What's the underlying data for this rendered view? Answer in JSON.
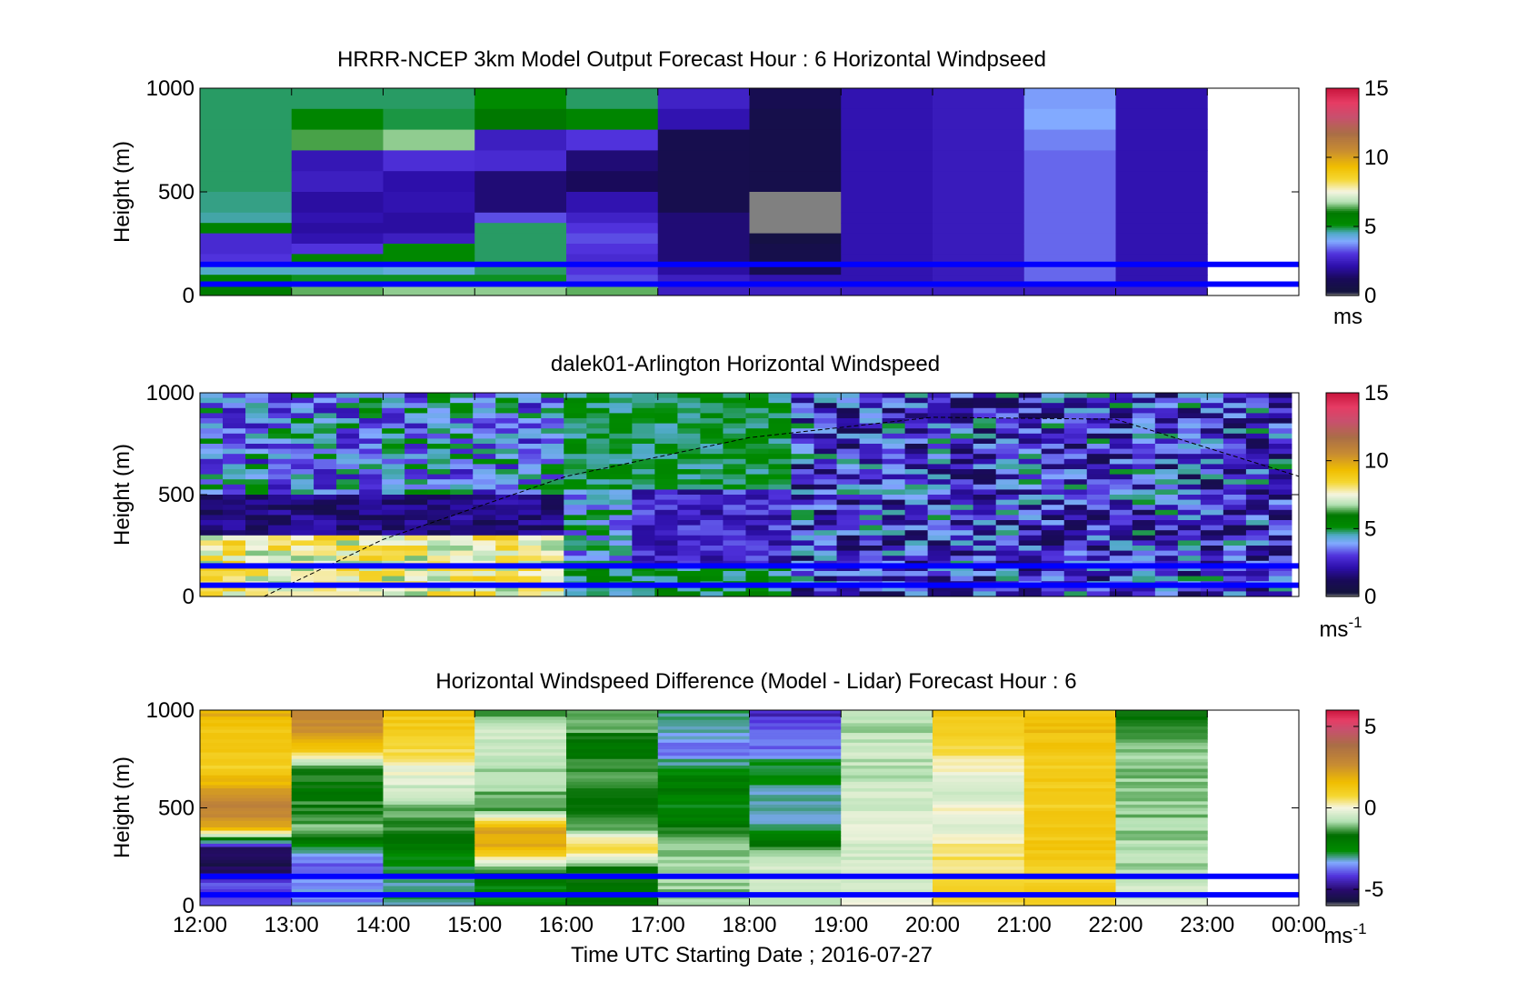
{
  "figure": {
    "xlabel": "Time UTC  Starting Date ; 2016-07-27",
    "x_tick_labels": [
      "12:00",
      "13:00",
      "14:00",
      "15:00",
      "16:00",
      "17:00",
      "18:00",
      "19:00",
      "20:00",
      "21:00",
      "22:00",
      "23:00",
      "00:00"
    ],
    "xlim": [
      "12:00",
      "00:00"
    ]
  },
  "chart_data": [
    {
      "type": "heatmap",
      "title": "HRRR-NCEP 3km Model Output   Forecast Hour : 6 Horizontal Windpseed",
      "ylabel": "Height (m)",
      "ylim": [
        0,
        1000
      ],
      "y_ticks": [
        0,
        500,
        1000
      ],
      "colorbar": {
        "range": [
          0,
          15
        ],
        "ticks": [
          0,
          5,
          10,
          15
        ],
        "label": "ms",
        "label_sup": ""
      },
      "reference_lines_height_m": [
        150,
        55
      ],
      "reference_line_color": "#0000ff",
      "time_bins": [
        "12:00",
        "13:00",
        "14:00",
        "15:00",
        "16:00",
        "17:00",
        "18:00",
        "19:00",
        "20:00",
        "21:00",
        "22:00"
      ],
      "profile_heights_m": [
        1000,
        900,
        800,
        700,
        600,
        500,
        400,
        350,
        300,
        250,
        200,
        150,
        100,
        50
      ],
      "profiles_ms": [
        [
          4.8,
          4.8,
          4.8,
          4.8,
          4.8,
          4.7,
          4.6,
          5.5,
          2.8,
          2.8,
          3.0,
          4.5,
          5.5,
          5.8
        ],
        [
          4.8,
          5.4,
          6.3,
          2.3,
          2.5,
          2.0,
          2.2,
          2.0,
          2.2,
          3.0,
          5.5,
          4.5,
          5.0,
          6.4
        ],
        [
          4.8,
          4.9,
          6.6,
          2.9,
          2.1,
          2.2,
          2.0,
          2.0,
          2.5,
          5.3,
          5.3,
          4.3,
          5.0,
          6.6
        ],
        [
          5.2,
          6.0,
          2.5,
          2.8,
          1.5,
          1.5,
          3.2,
          4.8,
          4.8,
          4.8,
          4.8,
          4.8,
          5.0,
          6.6
        ],
        [
          4.8,
          5.4,
          3.0,
          1.5,
          1.2,
          2.2,
          2.6,
          3.0,
          3.2,
          3.0,
          2.8,
          3.0,
          3.2,
          6.4
        ],
        [
          2.6,
          2.2,
          0.8,
          0.8,
          0.8,
          0.8,
          1.5,
          1.5,
          1.5,
          1.5,
          1.5,
          2.0,
          2.5,
          2.5
        ],
        [
          0.9,
          0.7,
          0.7,
          0.7,
          0.7,
          null,
          null,
          null,
          0.5,
          0.7,
          0.7,
          0.9,
          2.2,
          2.5
        ],
        [
          2.2,
          2.2,
          2.2,
          2.2,
          2.2,
          2.2,
          2.2,
          2.2,
          2.2,
          2.2,
          2.2,
          2.2,
          2.2,
          2.5
        ],
        [
          2.4,
          2.4,
          2.4,
          2.4,
          2.4,
          2.4,
          2.4,
          2.4,
          2.4,
          2.4,
          2.4,
          2.4,
          2.4,
          2.5
        ],
        [
          3.8,
          3.9,
          3.6,
          3.4,
          3.4,
          3.4,
          3.4,
          3.4,
          3.4,
          3.4,
          3.4,
          3.4,
          3.4,
          2.5
        ],
        [
          2.2,
          2.2,
          2.2,
          2.2,
          2.2,
          2.2,
          2.2,
          2.2,
          2.2,
          2.2,
          2.2,
          2.2,
          2.2,
          2.5
        ]
      ]
    },
    {
      "type": "heatmap",
      "title": "dalek01-Arlington  Horizontal Windspeed",
      "ylabel": "Height (m)",
      "ylim": [
        0,
        1000
      ],
      "y_ticks": [
        0,
        500,
        1000
      ],
      "colorbar": {
        "range": [
          0,
          15
        ],
        "ticks": [
          0,
          5,
          10,
          15
        ],
        "label": "ms",
        "label_sup": "-1"
      },
      "reference_lines_height_m": [
        150,
        55
      ],
      "reference_line_color": "#0000ff",
      "time_bins_hours_after_start": 48,
      "time_span": [
        "12:00",
        "23:55"
      ],
      "dashed_curve": {
        "x_hours_after_start": [
          0.7,
          2,
          4,
          6,
          8,
          10,
          12.0
        ],
        "y_m": [
          0,
          280,
          590,
          780,
          880,
          870,
          590
        ]
      },
      "regime_description_ms": [
        {
          "from": "12:00",
          "to": "16:00",
          "below_300m": 7.5,
          "300_500m": 1.5,
          "above_500m": 3.5
        },
        {
          "from": "16:00",
          "to": "18:30",
          "below_150m": 4.5,
          "150_500m": 2.8,
          "above_500m": 5.0
        },
        {
          "from": "18:30",
          "to": "23:55",
          "all_heights": 2.5
        }
      ]
    },
    {
      "type": "heatmap",
      "title": "Horizontal Windspeed Difference (Model - Lidar) Forecast Hour : 6",
      "ylabel": "Height (m)",
      "ylim": [
        0,
        1000
      ],
      "y_ticks": [
        0,
        500,
        1000
      ],
      "colorbar": {
        "range": [
          -6,
          6
        ],
        "ticks": [
          -5,
          0,
          5
        ],
        "label": "ms",
        "label_sup": "-1"
      },
      "reference_lines_height_m": [
        150,
        55
      ],
      "reference_line_color": "#0000ff",
      "time_bins": [
        "12:00",
        "13:00",
        "14:00",
        "15:00",
        "16:00",
        "17:00",
        "18:00",
        "19:00",
        "20:00",
        "21:00",
        "22:00"
      ],
      "profile_heights_m": [
        1000,
        900,
        800,
        700,
        600,
        500,
        400,
        300,
        200,
        100
      ],
      "profiles_ms": [
        [
          2.0,
          1.2,
          1.2,
          1.0,
          2.0,
          3.0,
          2.2,
          -5.0,
          -5.5,
          -4.0
        ],
        [
          3.0,
          2.5,
          1.2,
          -1.5,
          -1.8,
          -1.5,
          -1.2,
          -2.5,
          -4.0,
          -3.5
        ],
        [
          1.3,
          1.0,
          0.8,
          0.0,
          -0.5,
          -1.2,
          -1.5,
          -2.0,
          -3.0,
          -3.0
        ],
        [
          -1.5,
          -0.5,
          -0.5,
          -0.8,
          -1.0,
          -1.5,
          2.0,
          2.0,
          -1.0,
          -2.5
        ],
        [
          -1.0,
          -1.3,
          -1.8,
          -1.5,
          -1.5,
          -1.8,
          -1.5,
          1.0,
          -1.5,
          -2.0
        ],
        [
          -3.0,
          -3.0,
          -4.0,
          -2.5,
          -2.0,
          -2.5,
          -1.8,
          -1.0,
          -0.8,
          -1.0
        ],
        [
          -4.5,
          -4.0,
          -3.8,
          -2.5,
          -3.0,
          -3.0,
          -3.0,
          -1.5,
          -0.5,
          -0.5
        ],
        [
          -0.5,
          -0.8,
          -0.5,
          -0.8,
          -0.5,
          -0.5,
          -0.3,
          -0.5,
          -0.5,
          -0.2
        ],
        [
          1.2,
          1.0,
          0.7,
          0.0,
          -0.5,
          0.0,
          -0.2,
          0.5,
          0.5,
          0.8
        ],
        [
          1.0,
          1.5,
          1.2,
          1.0,
          1.2,
          1.0,
          1.3,
          1.2,
          1.0,
          1.0
        ],
        [
          -1.5,
          -1.5,
          -1.2,
          -1.0,
          -1.0,
          -1.0,
          -1.0,
          -0.8,
          -0.8,
          -0.5
        ]
      ]
    }
  ]
}
